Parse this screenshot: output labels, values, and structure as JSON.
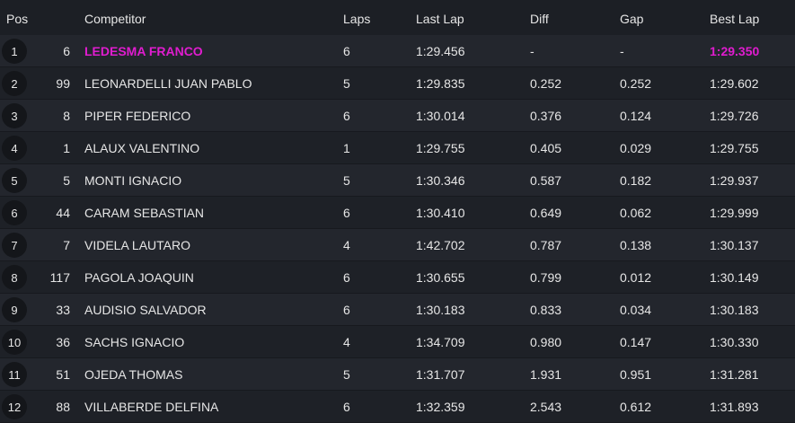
{
  "table": {
    "columns": [
      "Pos",
      "Competitor",
      "Laps",
      "Last Lap",
      "Diff",
      "Gap",
      "Best Lap"
    ],
    "rows": [
      [
        "1",
        "6",
        "LEDESMA FRANCO",
        "6",
        "1:29.456",
        "-",
        "-",
        "1:29.350"
      ],
      [
        "2",
        "99",
        "LEONARDELLI JUAN PABLO",
        "5",
        "1:29.835",
        "0.252",
        "0.252",
        "1:29.602"
      ],
      [
        "3",
        "8",
        "PIPER FEDERICO",
        "6",
        "1:30.014",
        "0.376",
        "0.124",
        "1:29.726"
      ],
      [
        "4",
        "1",
        "ALAUX VALENTINO",
        "1",
        "1:29.755",
        "0.405",
        "0.029",
        "1:29.755"
      ],
      [
        "5",
        "5",
        "MONTI IGNACIO",
        "5",
        "1:30.346",
        "0.587",
        "0.182",
        "1:29.937"
      ],
      [
        "6",
        "44",
        "CARAM SEBASTIAN",
        "6",
        "1:30.410",
        "0.649",
        "0.062",
        "1:29.999"
      ],
      [
        "7",
        "7",
        "VIDELA LAUTARO",
        "4",
        "1:42.702",
        "0.787",
        "0.138",
        "1:30.137"
      ],
      [
        "8",
        "117",
        "PAGOLA JOAQUIN",
        "6",
        "1:30.655",
        "0.799",
        "0.012",
        "1:30.149"
      ],
      [
        "9",
        "33",
        "AUDISIO SALVADOR",
        "6",
        "1:30.183",
        "0.833",
        "0.034",
        "1:30.183"
      ],
      [
        "10",
        "36",
        "SACHS IGNACIO",
        "4",
        "1:34.709",
        "0.980",
        "0.147",
        "1:30.330"
      ],
      [
        "11",
        "51",
        "OJEDA THOMAS",
        "5",
        "1:31.707",
        "1.931",
        "0.951",
        "1:31.281"
      ],
      [
        "12",
        "88",
        "VILLABERDE DELFINA",
        "6",
        "1:32.359",
        "2.543",
        "0.612",
        "1:31.893"
      ]
    ]
  }
}
